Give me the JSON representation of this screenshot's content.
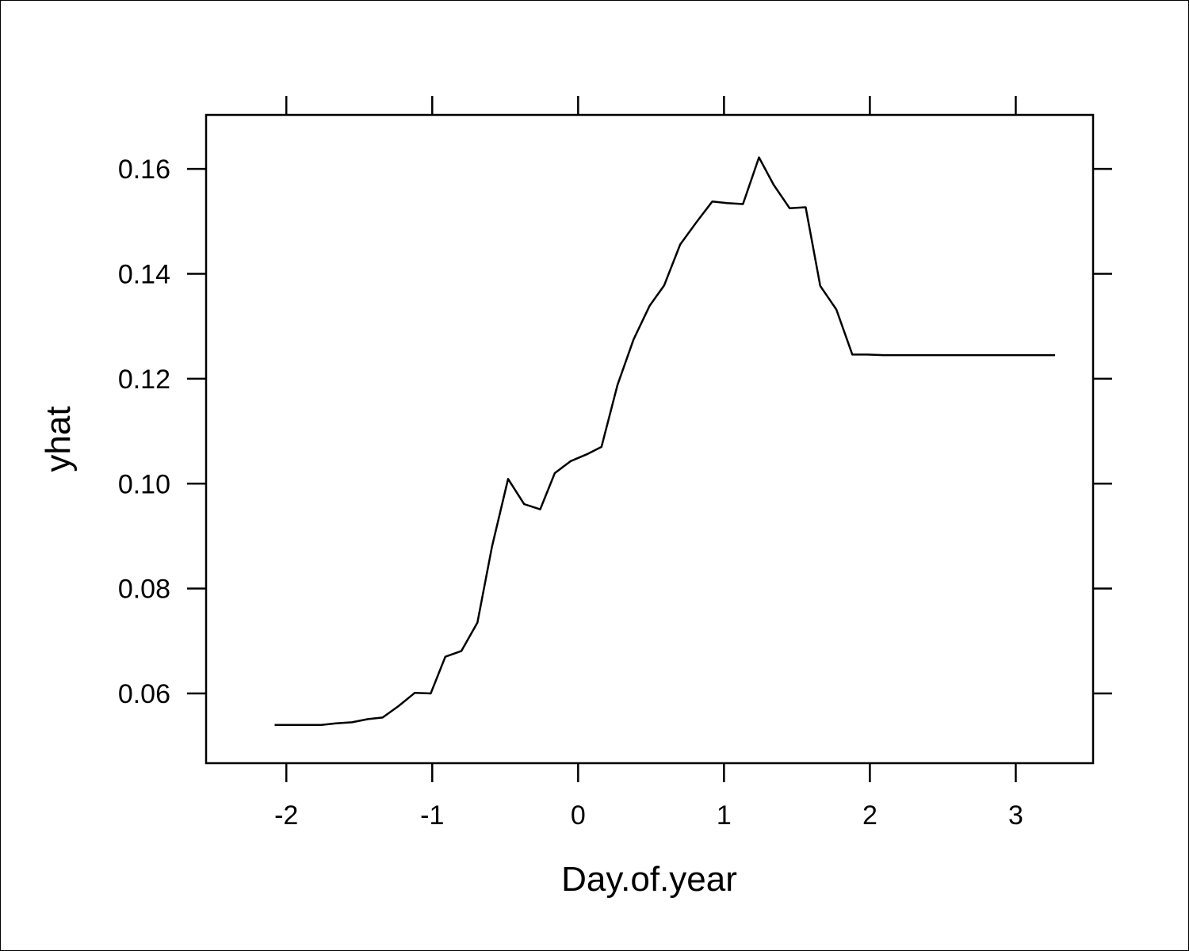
{
  "chart_data": {
    "type": "line",
    "title": "",
    "xlabel": "Day.of.year",
    "ylabel": "yhat",
    "xlim": [
      -2.55,
      3.53
    ],
    "ylim": [
      0.0467,
      0.1703
    ],
    "x_ticks": [
      -2,
      -1,
      0,
      1,
      2,
      3
    ],
    "x_tick_labels": [
      "-2",
      "-1",
      "0",
      "1",
      "2",
      "3"
    ],
    "y_ticks": [
      0.06,
      0.08,
      0.1,
      0.12,
      0.14,
      0.16
    ],
    "y_tick_labels": [
      "0.06",
      "0.08",
      "0.10",
      "0.12",
      "0.14",
      "0.16"
    ],
    "grid": false,
    "line_color": "#000000",
    "series": [
      {
        "x": [
          -2.08,
          -1.98,
          -1.87,
          -1.76,
          -1.66,
          -1.55,
          -1.44,
          -1.34,
          -1.23,
          -1.12,
          -1.01,
          -0.91,
          -0.8,
          -0.69,
          -0.59,
          -0.48,
          -0.37,
          -0.26,
          -0.16,
          -0.05,
          0.06,
          0.16,
          0.27,
          0.38,
          0.49,
          0.59,
          0.7,
          0.81,
          0.92,
          1.02,
          1.13,
          1.24,
          1.34,
          1.45,
          1.56,
          1.66,
          1.77,
          1.88,
          1.98,
          2.09,
          2.2,
          2.31,
          2.41,
          2.52,
          2.63,
          2.73,
          2.84,
          2.95,
          3.06,
          3.16,
          3.27
        ],
        "y": [
          0.054,
          0.054,
          0.054,
          0.054,
          0.0543,
          0.0545,
          0.0551,
          0.0554,
          0.0576,
          0.0601,
          0.06,
          0.067,
          0.0681,
          0.0735,
          0.088,
          0.1009,
          0.0961,
          0.0951,
          0.102,
          0.1043,
          0.1056,
          0.107,
          0.1188,
          0.1275,
          0.1339,
          0.1378,
          0.1456,
          0.1498,
          0.1538,
          0.1535,
          0.1533,
          0.1622,
          0.157,
          0.1525,
          0.1527,
          0.1377,
          0.1332,
          0.1246,
          0.1246,
          0.1245,
          0.1245,
          0.1245,
          0.1245,
          0.1245,
          0.1245,
          0.1245,
          0.1245,
          0.1245,
          0.1245,
          0.1245,
          0.1245
        ]
      }
    ]
  }
}
